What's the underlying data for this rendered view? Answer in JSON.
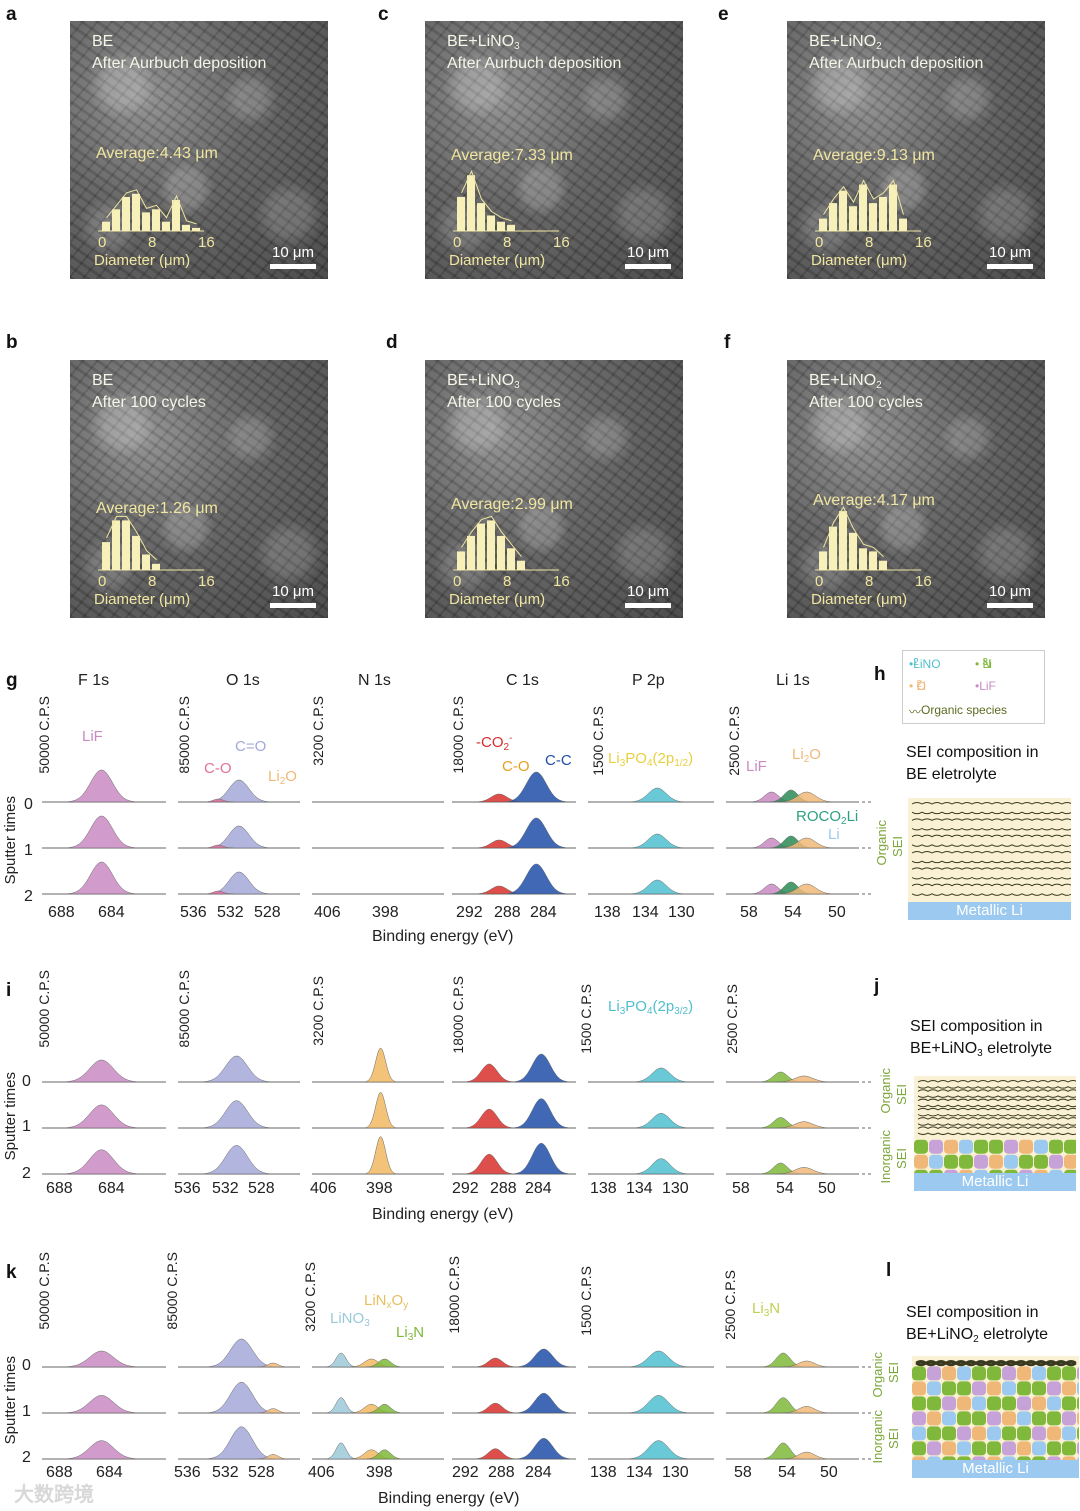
{
  "panels": {
    "a": {
      "letter": "a",
      "line1": "BE",
      "line2": "After Aurbuch deposition",
      "avg": "Average:4.43 μm",
      "scale": "10 μm",
      "xticks": [
        "0",
        "8",
        "16"
      ],
      "xlabel": "Diameter (μm)",
      "hist": [
        0.15,
        0.35,
        0.55,
        0.6,
        0.3,
        0.35,
        0.15,
        0.5,
        0.1,
        0.05
      ]
    },
    "b": {
      "letter": "b",
      "line1": "BE",
      "line2": "After 100 cycles",
      "avg": "Average:1.26 μm",
      "scale": "10 μm",
      "xticks": [
        "0",
        "8",
        "16"
      ],
      "xlabel": "Diameter (μm)",
      "hist": [
        0.45,
        0.8,
        0.8,
        0.55,
        0.25,
        0.1
      ]
    },
    "c": {
      "letter": "c",
      "line1": "BE+LiNO",
      "line1_sub": "3",
      "line2": "After Aurbuch deposition",
      "avg": "Average:7.33 μm",
      "scale": "10 μm",
      "xticks": [
        "0",
        "8",
        "16"
      ],
      "xlabel": "Diameter (μm)",
      "hist": [
        0.55,
        0.9,
        0.45,
        0.25,
        0.15,
        0.1
      ]
    },
    "d": {
      "letter": "d",
      "line1": "BE+LiNO",
      "line1_sub": "3",
      "line2": "After 100 cycles",
      "avg": "Average:2.99 μm",
      "scale": "10 μm",
      "xticks": [
        "0",
        "8",
        "16"
      ],
      "xlabel": "Diameter (μm)",
      "hist": [
        0.3,
        0.55,
        0.75,
        0.8,
        0.55,
        0.35,
        0.15
      ]
    },
    "e": {
      "letter": "e",
      "line1": "BE+LiNO",
      "line1_sub": "2",
      "line2": "After Aurbuch deposition",
      "avg": "Average:9.13 μm",
      "scale": "10 μm",
      "xticks": [
        "0",
        "8",
        "16"
      ],
      "xlabel": "Diameter (μm)",
      "hist": [
        0.2,
        0.45,
        0.65,
        0.4,
        0.75,
        0.45,
        0.55,
        0.75,
        0.2
      ]
    },
    "f": {
      "letter": "f",
      "line1": "BE+LiNO",
      "line1_sub": "2",
      "line2": "After 100 cycles",
      "avg": "Average:4.17 μm",
      "scale": "10 μm",
      "xticks": [
        "0",
        "8",
        "16"
      ],
      "xlabel": "Diameter (μm)",
      "hist": [
        0.3,
        0.7,
        0.95,
        0.6,
        0.35,
        0.3,
        0.15
      ]
    }
  },
  "xps": {
    "elements": [
      "F 1s",
      "O 1s",
      "N 1s",
      "C 1s",
      "P 2p",
      "Li 1s"
    ],
    "cps": [
      "50000 C.P.S",
      "85000 C.P.S",
      "3200 C.P.S",
      "18000 C.P.S",
      "1500 C.P.S",
      "2500 C.P.S"
    ],
    "ticks": [
      [
        "688",
        "684"
      ],
      [
        "536",
        "532",
        "528"
      ],
      [
        "406",
        "398"
      ],
      [
        "292",
        "288",
        "284"
      ],
      [
        "138",
        "134",
        "130"
      ],
      [
        "58",
        "54",
        "50"
      ]
    ],
    "axis_title": "Binding energy (eV)",
    "sputter_label": "Sputter times",
    "sputter_levels": [
      "0",
      "1",
      "2"
    ],
    "row_letters": [
      "g",
      "i",
      "k"
    ]
  },
  "annotations_g": {
    "lif": "LiF",
    "co": "C-O",
    "ceo": "C=O",
    "li2o_o": "Li",
    "co2": "-CO",
    "co2_sub": "2",
    "co2_sup": "-",
    "c_o": "C-O",
    "c_c": "C-C",
    "li3po4": "Li",
    "li3po4_rest": "PO",
    "li3po4_orb": "(2p",
    "li3po4_orb_sub": "1/2",
    "lif_li": "LiF",
    "li2o_li": "Li",
    "roco2li": "ROCO",
    "roco2li_rest": "Li",
    "li_metal": "Li"
  },
  "annotations_i": {
    "li3po4": "Li",
    "li3po4_rest": "PO",
    "li3po4_orb": "(2p",
    "li3po4_orb_sub": "3/2"
  },
  "annotations_k": {
    "lino3": "LiNO",
    "linxoy": "LiN",
    "li3n": "Li",
    "li3n_li": "Li",
    "li3n_letter": "N",
    "li3n_letter2": "N"
  },
  "legend": {
    "lino2": "LiNO",
    "li3n": "Li",
    "li2o": "Li",
    "lif": "LiF",
    "organic": "Organic species"
  },
  "schematics": {
    "h": {
      "letter": "h",
      "line1": "SEI composition in",
      "line2": "BE eletrolyte",
      "li": "Metallic Li",
      "organic": "Organic",
      "sei": "SEI"
    },
    "j": {
      "letter": "j",
      "line1": "SEI composition in",
      "line2a": "BE+LiNO",
      "line2_sub": "3",
      "line2b": " eletrolyte",
      "li": "Metallic Li",
      "organic": "Organic",
      "inorganic": "Inorganic",
      "sei": "SEI"
    },
    "l": {
      "letter": "l",
      "line1": "SEI composition in",
      "line2a": "BE+LiNO",
      "line2_sub": "2",
      "line2b": " eletrolyte",
      "li": "Metallic Li",
      "organic": "Organic",
      "inorganic": "Inorganic",
      "sei": "SEI"
    }
  },
  "watermark": "大数跨境",
  "colors": {
    "lif": "#c98bc3",
    "o": "#a4a8d8",
    "n": "#f0b860",
    "c_red": "#d8302c",
    "c_blue": "#1f4ea8",
    "p": "#4fbfcf",
    "li_green": "#7fb83a",
    "li_dark": "#2a8a55",
    "li2o": "#f0b878"
  }
}
